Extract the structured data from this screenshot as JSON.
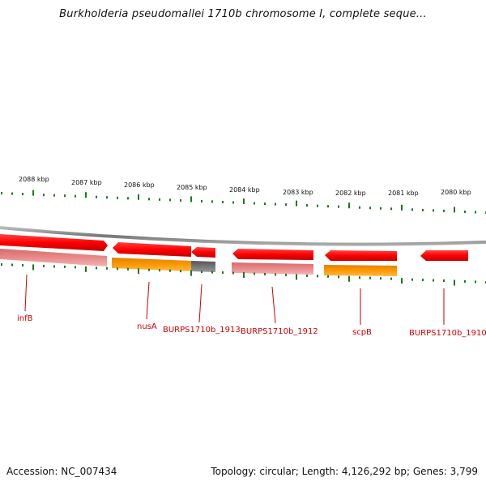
{
  "title": "Burkholderia pseudomallei 1710b chromosome I, complete seque...",
  "footer": {
    "accession": "Accession: NC_007434",
    "topology": "Topology: circular; Length: 4,126,292 bp; Genes: 3,799"
  },
  "colors": {
    "gene": "#ff0000",
    "gene_pale": "#e88888",
    "cds_orange": "#ff9900",
    "cds_gray": "#777777",
    "tick": "#1a7a1a",
    "backbone": "#888888",
    "label": "#cc0000"
  },
  "scale_labels": [
    "2088 kbp",
    "2087 kbp",
    "2086 kbp",
    "2085 kbp",
    "2084 kbp",
    "2083 kbp",
    "2082 kbp",
    "2081 kbp",
    "2080 kbp"
  ],
  "gene_labels": [
    "infB",
    "nusA",
    "BURPS1710b_1913",
    "BURPS1710b_1912",
    "scpB",
    "BURPS1710b_1910"
  ]
}
